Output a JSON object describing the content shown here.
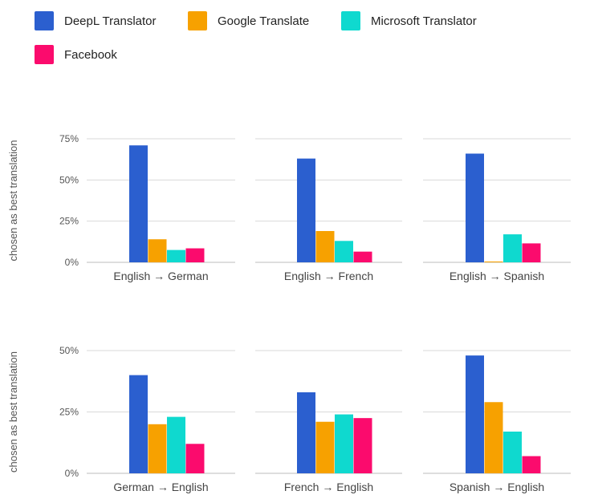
{
  "legend": [
    {
      "name": "DeepL Translator",
      "color": "#2b5fcf"
    },
    {
      "name": "Google Translate",
      "color": "#f7a100"
    },
    {
      "name": "Microsoft Translator",
      "color": "#0fd9cf"
    },
    {
      "name": "Facebook",
      "color": "#fb0b6d"
    }
  ],
  "chart_data": [
    {
      "type": "bar",
      "ylabel": "chosen as best translation",
      "ylim": [
        0,
        75
      ],
      "yticks": [
        "0%",
        "25%",
        "50%",
        "75%"
      ],
      "tick_values": [
        0,
        25,
        50,
        75
      ],
      "grid": true,
      "legend_position": "top-left",
      "panels": [
        {
          "category": "English → German",
          "values": [
            71,
            14,
            7.5,
            8.5
          ]
        },
        {
          "category": "English → French",
          "values": [
            63,
            19,
            13,
            6.5
          ]
        },
        {
          "category": "English → Spanish",
          "values": [
            66,
            0.5,
            17,
            11.5
          ]
        }
      ]
    },
    {
      "type": "bar",
      "ylabel": "chosen as best translation",
      "ylim": [
        0,
        50
      ],
      "yticks": [
        "0%",
        "25%",
        "50%"
      ],
      "tick_values": [
        0,
        25,
        50
      ],
      "grid": true,
      "legend_position": "top-left",
      "panels": [
        {
          "category": "German → English",
          "values": [
            40,
            20,
            23,
            12
          ]
        },
        {
          "category": "French → English",
          "values": [
            33,
            21,
            24,
            22.5
          ]
        },
        {
          "category": "Spanish → English",
          "values": [
            48,
            29,
            17,
            7
          ]
        }
      ]
    }
  ]
}
